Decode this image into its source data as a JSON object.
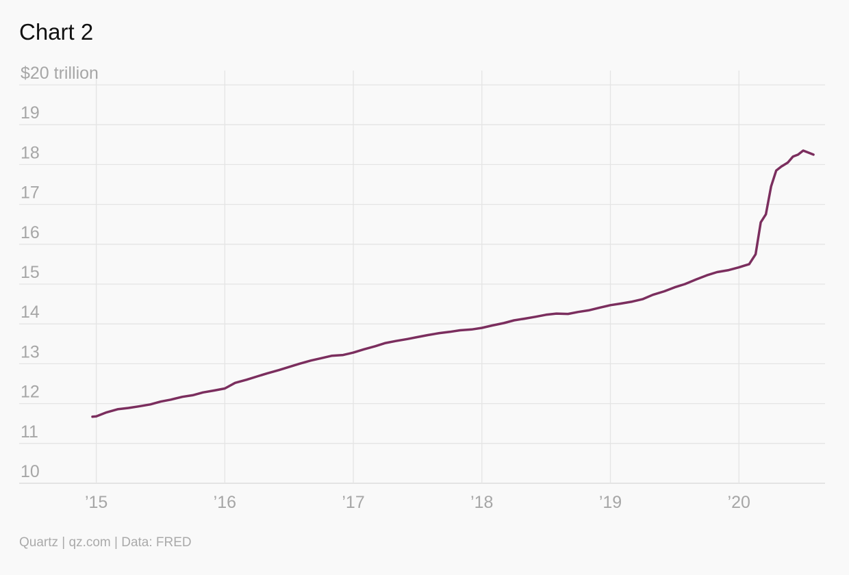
{
  "title": "Chart 2",
  "source": "Quartz | qz.com | Data: FRED",
  "chart_data": {
    "type": "line",
    "title": "Chart 2",
    "ylabel": "",
    "xlabel": "",
    "ylim": [
      10,
      20
    ],
    "xlim": [
      2014.4,
      2020.67
    ],
    "y_ticks": [
      {
        "value": 10,
        "label": "10"
      },
      {
        "value": 11,
        "label": "11"
      },
      {
        "value": 12,
        "label": "12"
      },
      {
        "value": 13,
        "label": "13"
      },
      {
        "value": 14,
        "label": "14"
      },
      {
        "value": 15,
        "label": "15"
      },
      {
        "value": 16,
        "label": "16"
      },
      {
        "value": 17,
        "label": "17"
      },
      {
        "value": 18,
        "label": "18"
      },
      {
        "value": 19,
        "label": "19"
      },
      {
        "value": 20,
        "label": "$20 trillion"
      }
    ],
    "x_ticks": [
      {
        "value": 2015,
        "label": "’15"
      },
      {
        "value": 2016,
        "label": "’16"
      },
      {
        "value": 2017,
        "label": "’17"
      },
      {
        "value": 2018,
        "label": "’18"
      },
      {
        "value": 2019,
        "label": "’19"
      },
      {
        "value": 2020,
        "label": "’20"
      }
    ],
    "grid": true,
    "colors": {
      "line": "#7b2e5e",
      "grid": "#e4e4e4",
      "tick_text": "#a6a6a6"
    },
    "series": [
      {
        "x": [
          2014.97,
          2015.0,
          2015.08,
          2015.17,
          2015.25,
          2015.33,
          2015.42,
          2015.5,
          2015.58,
          2015.67,
          2015.75,
          2015.83,
          2015.92,
          2016.0,
          2016.08,
          2016.17,
          2016.25,
          2016.33,
          2016.42,
          2016.5,
          2016.58,
          2016.67,
          2016.75,
          2016.83,
          2016.92,
          2017.0,
          2017.08,
          2017.17,
          2017.25,
          2017.33,
          2017.42,
          2017.5,
          2017.58,
          2017.67,
          2017.75,
          2017.83,
          2017.92,
          2018.0,
          2018.08,
          2018.17,
          2018.25,
          2018.33,
          2018.42,
          2018.5,
          2018.58,
          2018.67,
          2018.75,
          2018.83,
          2018.92,
          2019.0,
          2019.08,
          2019.17,
          2019.25,
          2019.33,
          2019.42,
          2019.5,
          2019.58,
          2019.67,
          2019.75,
          2019.83,
          2019.92,
          2020.0,
          2020.04,
          2020.08,
          2020.13,
          2020.17,
          2020.21,
          2020.25,
          2020.29,
          2020.33,
          2020.38,
          2020.42,
          2020.46,
          2020.5,
          2020.54,
          2020.58
        ],
        "values": [
          11.67,
          11.68,
          11.78,
          11.86,
          11.89,
          11.93,
          11.98,
          12.05,
          12.1,
          12.17,
          12.21,
          12.28,
          12.33,
          12.38,
          12.52,
          12.6,
          12.68,
          12.76,
          12.84,
          12.92,
          13.0,
          13.08,
          13.14,
          13.2,
          13.22,
          13.28,
          13.36,
          13.44,
          13.52,
          13.57,
          13.62,
          13.67,
          13.72,
          13.77,
          13.8,
          13.84,
          13.86,
          13.9,
          13.96,
          14.02,
          14.09,
          14.13,
          14.18,
          14.23,
          14.26,
          14.25,
          14.3,
          14.34,
          14.41,
          14.47,
          14.51,
          14.56,
          14.62,
          14.73,
          14.82,
          14.92,
          15.0,
          15.12,
          15.22,
          15.3,
          15.35,
          15.42,
          15.46,
          15.5,
          15.75,
          16.55,
          16.75,
          17.45,
          17.85,
          17.95,
          18.05,
          18.2,
          18.25,
          18.35,
          18.3,
          18.25
        ]
      }
    ]
  }
}
